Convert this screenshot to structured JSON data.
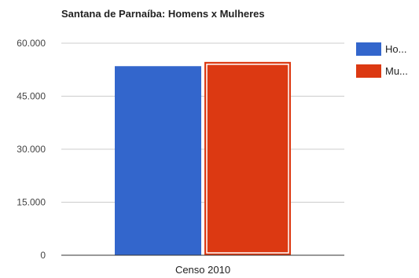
{
  "chart_data": {
    "type": "bar",
    "title": "Santana de Parnaíba: Homens x Mulheres",
    "categories": [
      "Censo 2010"
    ],
    "series": [
      {
        "name": "Ho...",
        "color": "#3366cc",
        "values": [
          53500
        ]
      },
      {
        "name": "Mu...",
        "color": "#dc3912",
        "values": [
          54700
        ],
        "highlighted": true
      }
    ],
    "ylim": [
      0,
      60000
    ],
    "yticks": [
      0,
      15000,
      30000,
      45000,
      60000
    ],
    "ytick_labels": [
      "0",
      "15.000",
      "30.000",
      "45.000",
      "60.000"
    ],
    "grid": true,
    "legend": "right"
  }
}
